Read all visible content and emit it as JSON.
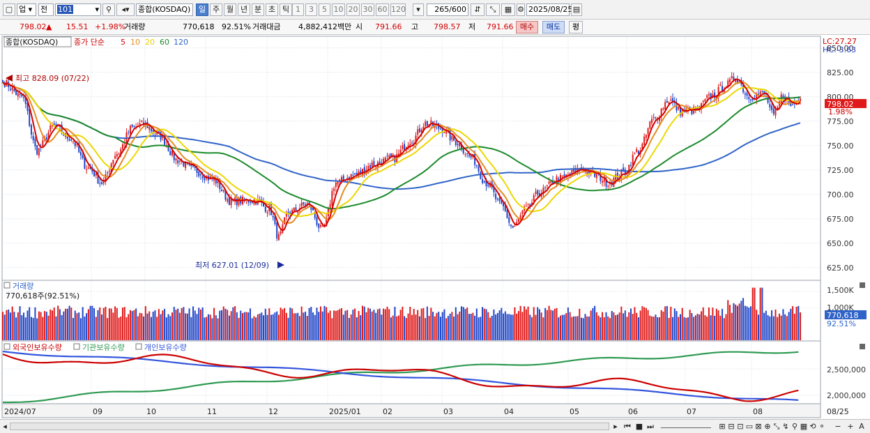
{
  "toolbar": {
    "market": "업",
    "market_mode": "전",
    "code": "101",
    "index_name": "종합(KOSDAQ)",
    "periods": [
      "일",
      "주",
      "월",
      "년",
      "분",
      "초",
      "틱"
    ],
    "intervals": [
      "1",
      "3",
      "5",
      "10",
      "20",
      "30",
      "60",
      "120"
    ],
    "count": "265",
    "total": "/600",
    "date": "2025/08/25"
  },
  "quote": {
    "price": "798.02",
    "change": "15.51",
    "pct": "+1.98%",
    "vol_label": "거래량",
    "volume": "770,618",
    "vol_ratio": "92.51%",
    "amount_label": "거래대금",
    "amount": "4,882,412백만",
    "open_label": "시",
    "open": "791.66",
    "high_label": "고",
    "high": "798.57",
    "low_label": "저",
    "low": "791.66",
    "buy": "매수",
    "sell": "매도",
    "eval": "평"
  },
  "chart_data": [
    {
      "type": "line",
      "name_label": "종합(KOSDAQ)",
      "legend_title": "종가 단순",
      "ma_legend": [
        "5",
        "10",
        "20",
        "60",
        "120"
      ],
      "lc": "LC:27.27",
      "hc": "HC:-3.63",
      "high_annotation": "최고 828.09 (07/22)",
      "low_annotation": "최저 627.01 (12/09)",
      "current_price": "798.02",
      "current_pct": "1.98%",
      "yticks": [
        "850.00",
        "825.00",
        "800.00",
        "775.00",
        "750.00",
        "725.00",
        "700.00",
        "675.00",
        "650.00",
        "625.00"
      ],
      "ylim": [
        612,
        862
      ],
      "x_month_labels": [
        "2024/07",
        "09",
        "10",
        "11",
        "12",
        "2025/01",
        "02",
        "03",
        "04",
        "05",
        "06",
        "07",
        "08",
        "08/25"
      ],
      "close_anchors": [
        [
          0,
          815
        ],
        [
          10,
          800
        ],
        [
          18,
          745
        ],
        [
          27,
          770
        ],
        [
          35,
          758
        ],
        [
          45,
          727
        ],
        [
          52,
          712
        ],
        [
          60,
          742
        ],
        [
          68,
          768
        ],
        [
          74,
          772
        ],
        [
          82,
          760
        ],
        [
          92,
          735
        ],
        [
          100,
          725
        ],
        [
          110,
          716
        ],
        [
          120,
          693
        ],
        [
          132,
          694
        ],
        [
          140,
          685
        ],
        [
          145,
          656
        ],
        [
          150,
          681
        ],
        [
          160,
          690
        ],
        [
          168,
          663
        ],
        [
          175,
          712
        ],
        [
          185,
          720
        ],
        [
          195,
          731
        ],
        [
          205,
          737
        ],
        [
          215,
          756
        ],
        [
          222,
          773
        ],
        [
          230,
          768
        ],
        [
          238,
          754
        ],
        [
          246,
          738
        ],
        [
          254,
          712
        ],
        [
          262,
          688
        ],
        [
          268,
          666
        ],
        [
          275,
          685
        ],
        [
          282,
          702
        ],
        [
          292,
          716
        ],
        [
          305,
          726
        ],
        [
          312,
          719
        ],
        [
          318,
          712
        ],
        [
          326,
          722
        ],
        [
          334,
          745
        ],
        [
          342,
          777
        ],
        [
          350,
          797
        ],
        [
          356,
          785
        ],
        [
          364,
          786
        ],
        [
          372,
          800
        ],
        [
          380,
          812
        ],
        [
          385,
          820
        ],
        [
          392,
          800
        ],
        [
          400,
          803
        ],
        [
          405,
          780
        ],
        [
          410,
          802
        ],
        [
          414,
          791
        ],
        [
          419,
          798.02
        ]
      ]
    },
    {
      "type": "bar",
      "name_label": "거래량",
      "value_label": "770,618주(92.51%)",
      "yticks": [
        "1,500K",
        "1,000K"
      ],
      "current": "770,618",
      "current_pct": "92.51%"
    },
    {
      "type": "line",
      "legend": [
        "외국인보유수량",
        "기관보유수량",
        "개인보유수량"
      ],
      "yticks": [
        "2,500,000",
        "2,000,000"
      ],
      "series_colors": [
        "#cc0000",
        "#2e9a52",
        "#3355dd"
      ]
    }
  ],
  "bottom": {
    "icons": [
      "⊞",
      "⊟",
      "⊡",
      "▭",
      "⊠",
      "⊕",
      "⤡",
      "↯",
      "⚲",
      "▦",
      "⟲",
      "⚬"
    ],
    "zoom": [
      "−",
      "+",
      "A"
    ]
  }
}
